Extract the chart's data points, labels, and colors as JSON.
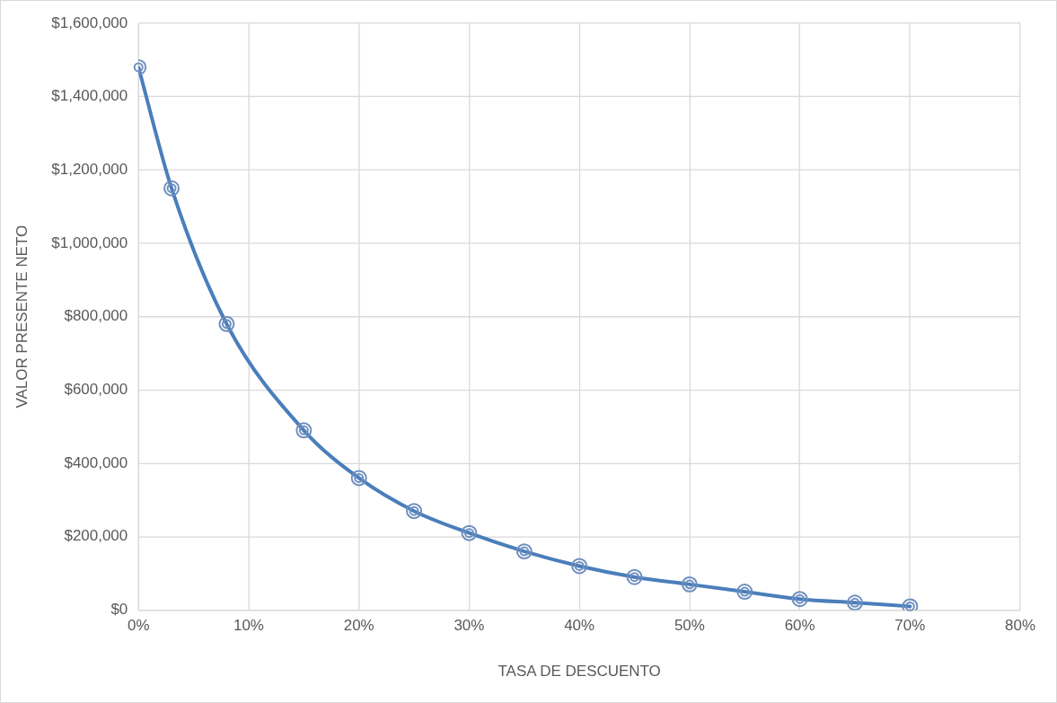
{
  "chart_data": {
    "type": "line",
    "xlabel": "TASA DE DESCUENTO",
    "ylabel": "VALOR PRESENTE NETO",
    "x": [
      0,
      3,
      8,
      15,
      20,
      25,
      30,
      35,
      40,
      45,
      50,
      55,
      60,
      65,
      70
    ],
    "series": [
      {
        "color": "#4a7ebb",
        "values": [
          1480000,
          1150000,
          780000,
          490000,
          360000,
          270000,
          210000,
          160000,
          120000,
          90000,
          70000,
          50000,
          30000,
          20000,
          10000
        ]
      }
    ],
    "xlim": [
      0,
      80
    ],
    "xticks": [
      {
        "value": 0,
        "label": "0%"
      },
      {
        "value": 10,
        "label": "10%"
      },
      {
        "value": 20,
        "label": "20%"
      },
      {
        "value": 30,
        "label": "30%"
      },
      {
        "value": 40,
        "label": "40%"
      },
      {
        "value": 50,
        "label": "50%"
      },
      {
        "value": 60,
        "label": "60%"
      },
      {
        "value": 70,
        "label": "70%"
      },
      {
        "value": 80,
        "label": "80%"
      }
    ],
    "ylim": [
      0,
      1600000
    ],
    "yticks": [
      {
        "value": 0,
        "label": "$0"
      },
      {
        "value": 200000,
        "label": "$200,000"
      },
      {
        "value": 400000,
        "label": "$400,000"
      },
      {
        "value": 600000,
        "label": "$600,000"
      },
      {
        "value": 800000,
        "label": "$800,000"
      },
      {
        "value": 1000000,
        "label": "$1,000,000"
      },
      {
        "value": 1200000,
        "label": "$1,200,000"
      },
      {
        "value": 1400000,
        "label": "$1,400,000"
      },
      {
        "value": 1600000,
        "label": "$1,600,000"
      }
    ],
    "grid": true,
    "legend": false,
    "marker": "circle",
    "line_style": "solid"
  }
}
